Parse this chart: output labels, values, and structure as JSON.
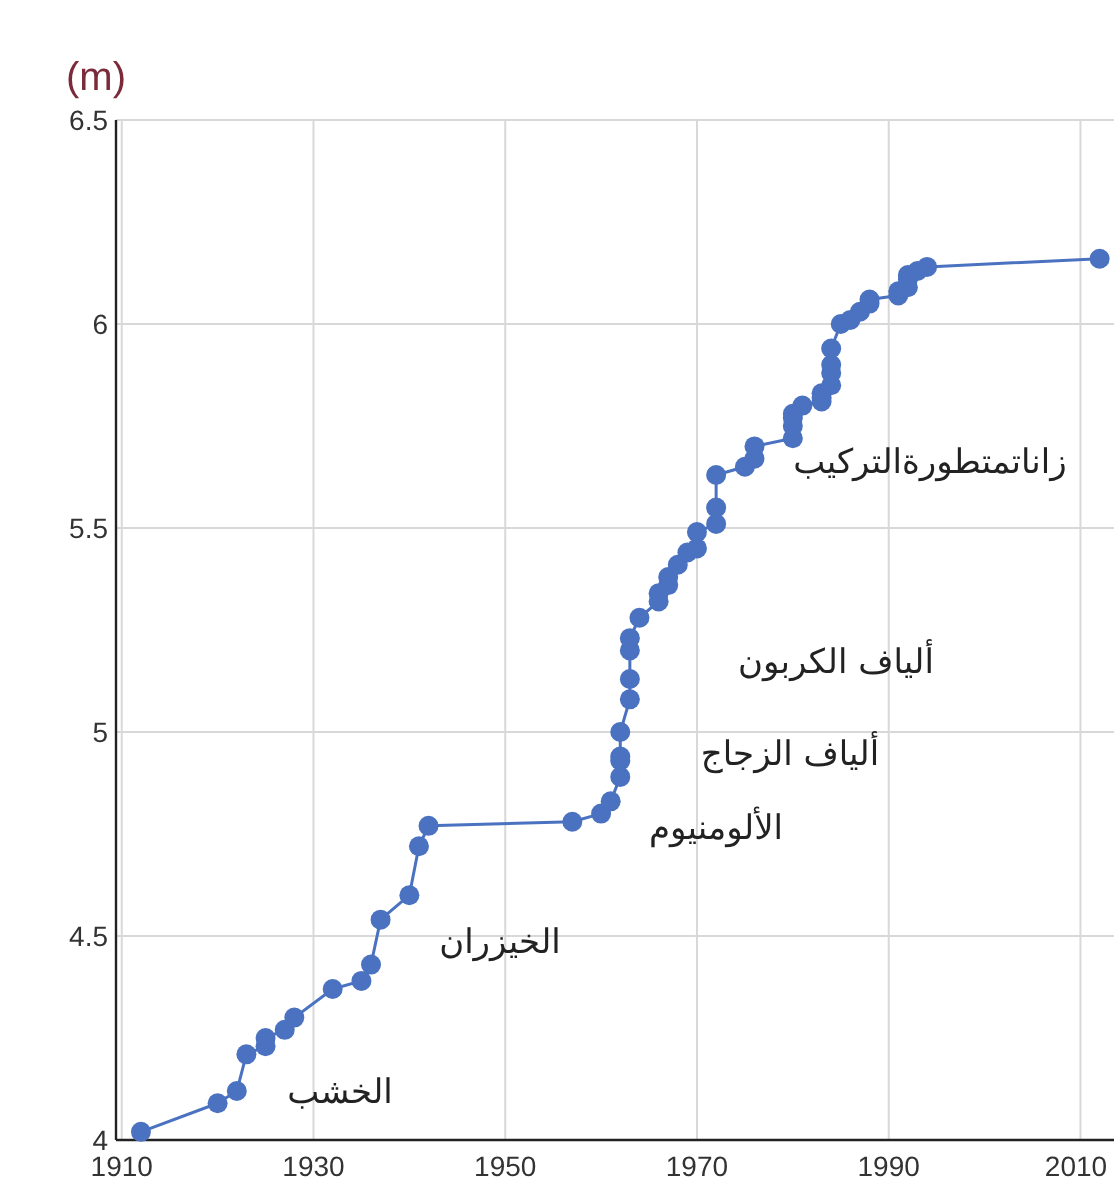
{
  "chart_data": {
    "type": "line",
    "ylabel": "(m)",
    "xlim": [
      1909.4,
      2013.5
    ],
    "ylim": [
      4,
      6.5
    ],
    "xticks": [
      1910,
      1930,
      1950,
      1970,
      1990,
      2010
    ],
    "yticks": [
      4,
      {
        "value": 4.5,
        "label": "4.5"
      },
      5,
      {
        "value": 5.5,
        "label": "5.5"
      },
      6,
      {
        "value": 6.5,
        "label": "6.5"
      }
    ],
    "grid": true,
    "marker": "circle",
    "line_style": "solid",
    "series": [
      {
        "color": "#4a72c0",
        "x": [
          1912,
          1920,
          1922,
          1923,
          1925,
          1925,
          1927,
          1928,
          1932,
          1935,
          1936,
          1937,
          1940,
          1941,
          1942,
          1957,
          1960,
          1961,
          1962,
          1962,
          1962,
          1962,
          1963,
          1963,
          1963,
          1963,
          1964,
          1966,
          1966,
          1967,
          1967,
          1968,
          1969,
          1970,
          1970,
          1972,
          1972,
          1972,
          1975,
          1976,
          1976,
          1980,
          1980,
          1980,
          1980,
          1981,
          1983,
          1983,
          1983,
          1984,
          1984,
          1984,
          1984,
          1985,
          1986,
          1987,
          1988,
          1988,
          1991,
          1991,
          1992,
          1992,
          1992,
          1993,
          1994,
          2012
        ],
        "values": [
          4.02,
          4.09,
          4.12,
          4.21,
          4.23,
          4.25,
          4.27,
          4.3,
          4.37,
          4.39,
          4.43,
          4.54,
          4.6,
          4.72,
          4.77,
          4.78,
          4.8,
          4.83,
          4.89,
          4.93,
          4.94,
          5.0,
          5.08,
          5.13,
          5.2,
          5.23,
          5.28,
          5.32,
          5.34,
          5.36,
          5.38,
          5.41,
          5.44,
          5.45,
          5.49,
          5.51,
          5.55,
          5.63,
          5.65,
          5.67,
          5.7,
          5.72,
          5.75,
          5.77,
          5.78,
          5.8,
          5.81,
          5.82,
          5.83,
          5.85,
          5.88,
          5.9,
          5.94,
          6.0,
          6.01,
          6.03,
          6.05,
          6.06,
          6.07,
          6.08,
          6.09,
          6.11,
          6.12,
          6.13,
          6.14,
          6.16
        ]
      }
    ],
    "annotations": [
      "الخشب",
      "الخيزران",
      "الألومنيوم",
      "ألياف الزجاج",
      "ألياف الكربون",
      "زاناتمتطورةالتركيب"
    ]
  }
}
